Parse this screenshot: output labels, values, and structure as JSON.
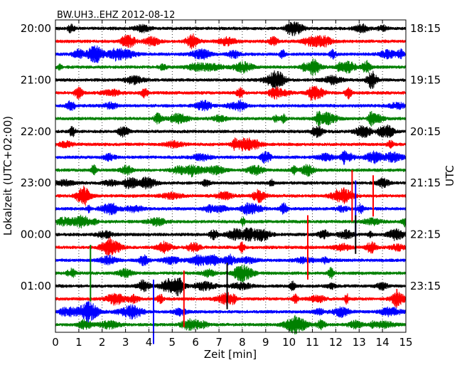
{
  "chart_data": {
    "type": "line",
    "title": "BW.UH3..EHZ 2012-08-12",
    "xlabel": "Zeit  [min]",
    "ylabel_left": "Lokalzeit (UTC+02:00)",
    "ylabel_right": "UTC",
    "xlim": [
      0,
      15
    ],
    "x_ticks": [
      0,
      1,
      2,
      3,
      4,
      5,
      6,
      7,
      8,
      9,
      10,
      11,
      12,
      13,
      14,
      15
    ],
    "x_tick_labels": [
      "0",
      "1",
      "2",
      "3",
      "4",
      "5",
      "6",
      "7",
      "8",
      "9",
      "10",
      "11",
      "12",
      "13",
      "14",
      "15"
    ],
    "left_tick_labels": [
      "20:00",
      "21:00",
      "22:00",
      "23:00",
      "00:00",
      "01:00"
    ],
    "right_tick_labels": [
      "18:15",
      "19:15",
      "20:15",
      "21:15",
      "22:15",
      "23:15"
    ],
    "labeled_trace_rows": [
      0,
      4,
      8,
      12,
      16,
      20
    ],
    "trace_count": 24,
    "color_cycle": [
      "#000000",
      "#ff0000",
      "#0000ff",
      "#008000"
    ],
    "grid": "vertical dotted lines at each minute",
    "spikes": [
      {
        "row": 13,
        "x": 12.7,
        "amplitude": 2.0
      },
      {
        "row": 13,
        "x": 13.6,
        "amplitude": 1.6
      },
      {
        "row": 14,
        "x": 12.85,
        "amplitude": 2.2
      },
      {
        "row": 16,
        "x": 12.85,
        "amplitude": 1.5
      },
      {
        "row": 17,
        "x": 10.8,
        "amplitude": 2.5
      },
      {
        "row": 19,
        "x": 1.5,
        "amplitude": 2.2
      },
      {
        "row": 20,
        "x": 7.35,
        "amplitude": 1.8
      },
      {
        "row": 21,
        "x": 5.5,
        "amplitude": 2.2
      },
      {
        "row": 22,
        "x": 4.2,
        "amplitude": 2.5
      }
    ]
  }
}
